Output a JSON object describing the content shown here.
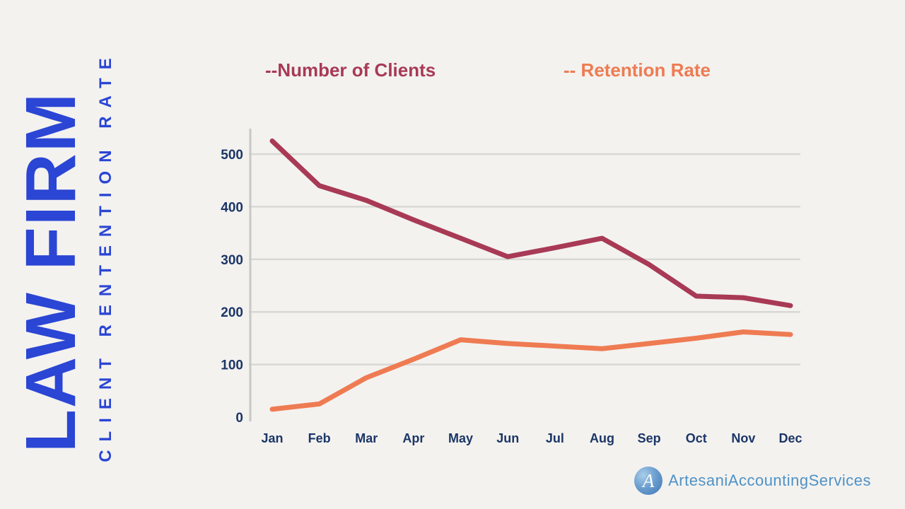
{
  "page": {
    "background": "#f3f2ef"
  },
  "title": {
    "main": "LAW FIRM",
    "subtitle": "CLIENT RENTENTION RATE"
  },
  "legend": {
    "clients_label": "--Number of Clients",
    "retention_label": "-- Retention Rate"
  },
  "chart_data": {
    "type": "line",
    "title": "Law Firm Client Retention Rate",
    "categories": [
      "Jan",
      "Feb",
      "Mar",
      "Apr",
      "May",
      "Jun",
      "Jul",
      "Aug",
      "Sep",
      "Oct",
      "Nov",
      "Dec"
    ],
    "series": [
      {
        "name": "Number of Clients",
        "color": "#a83a56",
        "values": [
          525,
          440,
          412,
          375,
          340,
          305,
          322,
          340,
          290,
          230,
          227,
          212
        ]
      },
      {
        "name": "Retention Rate",
        "color": "#ef7b52",
        "values": [
          15,
          25,
          75,
          110,
          147,
          140,
          135,
          130,
          140,
          150,
          162,
          157
        ]
      }
    ],
    "yticks": [
      0,
      100,
      200,
      300,
      400,
      500
    ],
    "ylim": [
      0,
      550
    ],
    "xlabel": "",
    "ylabel": "",
    "grid": true,
    "legend_position": "top",
    "grid_color": "#d8d8d5",
    "axis_color": "#c8c8c5",
    "tick_label_color": "#1c3667"
  },
  "footer": {
    "logo_letter": "A",
    "brand": "ArtesaniAccountingServices"
  }
}
